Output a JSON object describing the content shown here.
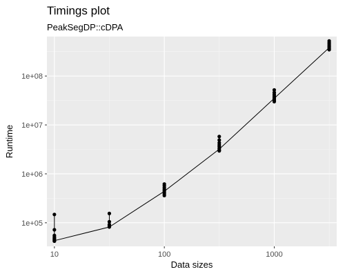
{
  "chart_data": {
    "type": "line",
    "title": "Timings plot",
    "subtitle": "PeakSegDP::cDPA",
    "xlabel": "Data sizes",
    "ylabel": "Runtime",
    "x_scale": "log10",
    "y_scale": "log10",
    "xlim": [
      8.55,
      3700
    ],
    "ylim": [
      33000,
      640000000
    ],
    "x_ticks": [
      10,
      100,
      1000
    ],
    "x_tick_labels": [
      "10",
      "100",
      "1000"
    ],
    "y_ticks": [
      100000,
      1000000,
      10000000,
      100000000
    ],
    "y_tick_labels": [
      "1e+05",
      "1e+06",
      "1e+07",
      "1e+08"
    ],
    "grid": true,
    "background": "#ebebeb",
    "line_series": {
      "x": [
        10,
        31.6,
        100,
        316,
        1000,
        3160
      ],
      "y": [
        43000,
        82000,
        440000,
        3200000,
        35000000,
        380000000
      ]
    },
    "points": [
      {
        "x": 10,
        "y": 148000
      },
      {
        "x": 10,
        "y": 72000
      },
      {
        "x": 10,
        "y": 55000
      },
      {
        "x": 10,
        "y": 51000
      },
      {
        "x": 10,
        "y": 48000
      },
      {
        "x": 10,
        "y": 46000
      },
      {
        "x": 10,
        "y": 44000
      },
      {
        "x": 10,
        "y": 42000
      },
      {
        "x": 31.6,
        "y": 155000
      },
      {
        "x": 31.6,
        "y": 105000
      },
      {
        "x": 31.6,
        "y": 92000
      },
      {
        "x": 31.6,
        "y": 86000
      },
      {
        "x": 31.6,
        "y": 82000
      },
      {
        "x": 100,
        "y": 620000
      },
      {
        "x": 100,
        "y": 570000
      },
      {
        "x": 100,
        "y": 520000
      },
      {
        "x": 100,
        "y": 480000
      },
      {
        "x": 100,
        "y": 450000
      },
      {
        "x": 100,
        "y": 420000
      },
      {
        "x": 100,
        "y": 390000
      },
      {
        "x": 100,
        "y": 360000
      },
      {
        "x": 316,
        "y": 5800000
      },
      {
        "x": 316,
        "y": 4900000
      },
      {
        "x": 316,
        "y": 4300000
      },
      {
        "x": 316,
        "y": 3900000
      },
      {
        "x": 316,
        "y": 3600000
      },
      {
        "x": 316,
        "y": 3300000
      },
      {
        "x": 316,
        "y": 3050000
      },
      {
        "x": 316,
        "y": 2950000
      },
      {
        "x": 1000,
        "y": 52000000
      },
      {
        "x": 1000,
        "y": 46000000
      },
      {
        "x": 1000,
        "y": 42000000
      },
      {
        "x": 1000,
        "y": 39000000
      },
      {
        "x": 1000,
        "y": 36000000
      },
      {
        "x": 1000,
        "y": 34000000
      },
      {
        "x": 1000,
        "y": 32000000
      },
      {
        "x": 1000,
        "y": 30000000
      },
      {
        "x": 3160,
        "y": 520000000
      },
      {
        "x": 3160,
        "y": 480000000
      },
      {
        "x": 3160,
        "y": 450000000
      },
      {
        "x": 3160,
        "y": 420000000
      },
      {
        "x": 3160,
        "y": 400000000
      },
      {
        "x": 3160,
        "y": 380000000
      },
      {
        "x": 3160,
        "y": 360000000
      },
      {
        "x": 3160,
        "y": 345000000
      }
    ],
    "colors": {
      "panel": "#ebebeb",
      "grid_major": "#ffffff",
      "grid_minor": "#f5f5f5",
      "points": "#000000",
      "line": "#000000",
      "tick_text": "#4d4d4d"
    }
  }
}
